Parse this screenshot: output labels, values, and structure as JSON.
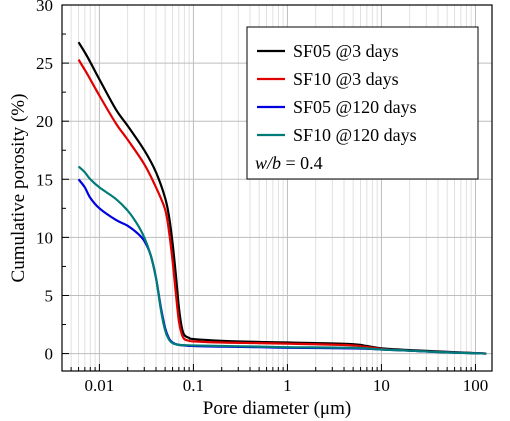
{
  "chart_data": {
    "type": "line",
    "xlabel": "Pore diameter (μm)",
    "ylabel": "Cumulative porosity (%)",
    "xscale": "log",
    "xlim": [
      0.004,
      150
    ],
    "ylim": [
      -1.5,
      30
    ],
    "xticks": [
      0.01,
      0.1,
      1,
      10,
      100
    ],
    "xtick_labels": [
      "0.01",
      "0.1",
      "1",
      "10",
      "100"
    ],
    "yticks": [
      0,
      5,
      10,
      15,
      20,
      25,
      30
    ],
    "ytick_labels": [
      "0",
      "5",
      "10",
      "15",
      "20",
      "25",
      "30"
    ],
    "grid": true,
    "legend_position": "top-right",
    "annotation": {
      "italic": "w/b",
      "rest": " = 0.4"
    },
    "series": [
      {
        "name": "SF05 @3 days",
        "color": "#000000",
        "points": [
          [
            0.006,
            26.8
          ],
          [
            0.0075,
            25.5
          ],
          [
            0.01,
            23.6
          ],
          [
            0.015,
            21.0
          ],
          [
            0.02,
            19.6
          ],
          [
            0.03,
            17.5
          ],
          [
            0.04,
            15.6
          ],
          [
            0.05,
            13.4
          ],
          [
            0.055,
            11.8
          ],
          [
            0.06,
            9.5
          ],
          [
            0.065,
            6.8
          ],
          [
            0.07,
            4.0
          ],
          [
            0.075,
            2.3
          ],
          [
            0.08,
            1.6
          ],
          [
            0.09,
            1.35
          ],
          [
            0.1,
            1.25
          ],
          [
            0.2,
            1.1
          ],
          [
            0.5,
            1.0
          ],
          [
            1,
            0.95
          ],
          [
            2,
            0.9
          ],
          [
            5,
            0.8
          ],
          [
            7,
            0.65
          ],
          [
            10,
            0.45
          ],
          [
            20,
            0.3
          ],
          [
            50,
            0.15
          ],
          [
            130,
            0.0
          ]
        ]
      },
      {
        "name": "SF10 @3 days",
        "color": "#e00000",
        "points": [
          [
            0.006,
            25.3
          ],
          [
            0.0075,
            24.0
          ],
          [
            0.01,
            22.2
          ],
          [
            0.015,
            19.8
          ],
          [
            0.02,
            18.4
          ],
          [
            0.03,
            16.3
          ],
          [
            0.04,
            14.3
          ],
          [
            0.05,
            12.4
          ],
          [
            0.055,
            10.5
          ],
          [
            0.06,
            8.0
          ],
          [
            0.065,
            5.2
          ],
          [
            0.07,
            2.8
          ],
          [
            0.075,
            1.7
          ],
          [
            0.08,
            1.25
          ],
          [
            0.09,
            1.1
          ],
          [
            0.1,
            1.05
          ],
          [
            0.2,
            0.95
          ],
          [
            0.5,
            0.9
          ],
          [
            1,
            0.85
          ],
          [
            2,
            0.8
          ],
          [
            5,
            0.7
          ],
          [
            10,
            0.4
          ],
          [
            20,
            0.25
          ],
          [
            50,
            0.12
          ],
          [
            130,
            0.0
          ]
        ]
      },
      {
        "name": "SF05 @120 days",
        "color": "#0000e0",
        "points": [
          [
            0.006,
            15.0
          ],
          [
            0.007,
            14.3
          ],
          [
            0.008,
            13.4
          ],
          [
            0.01,
            12.5
          ],
          [
            0.015,
            11.5
          ],
          [
            0.02,
            11.0
          ],
          [
            0.025,
            10.4
          ],
          [
            0.03,
            9.7
          ],
          [
            0.035,
            8.5
          ],
          [
            0.04,
            6.5
          ],
          [
            0.045,
            4.0
          ],
          [
            0.05,
            2.2
          ],
          [
            0.055,
            1.3
          ],
          [
            0.06,
            0.95
          ],
          [
            0.07,
            0.75
          ],
          [
            0.1,
            0.65
          ],
          [
            0.2,
            0.6
          ],
          [
            0.5,
            0.55
          ],
          [
            1,
            0.5
          ],
          [
            5,
            0.45
          ],
          [
            10,
            0.35
          ],
          [
            20,
            0.25
          ],
          [
            50,
            0.1
          ],
          [
            130,
            0.0
          ]
        ]
      },
      {
        "name": "SF10 @120 days",
        "color": "#007b78",
        "points": [
          [
            0.006,
            16.1
          ],
          [
            0.007,
            15.6
          ],
          [
            0.008,
            15.0
          ],
          [
            0.01,
            14.3
          ],
          [
            0.015,
            13.3
          ],
          [
            0.02,
            12.3
          ],
          [
            0.025,
            11.2
          ],
          [
            0.03,
            10.0
          ],
          [
            0.035,
            8.5
          ],
          [
            0.04,
            6.5
          ],
          [
            0.045,
            3.8
          ],
          [
            0.05,
            2.0
          ],
          [
            0.055,
            1.2
          ],
          [
            0.06,
            0.9
          ],
          [
            0.07,
            0.75
          ],
          [
            0.1,
            0.7
          ],
          [
            0.2,
            0.65
          ],
          [
            0.5,
            0.6
          ],
          [
            1,
            0.55
          ],
          [
            5,
            0.5
          ],
          [
            10,
            0.35
          ],
          [
            20,
            0.25
          ],
          [
            50,
            0.1
          ],
          [
            130,
            0.0
          ]
        ]
      }
    ]
  }
}
